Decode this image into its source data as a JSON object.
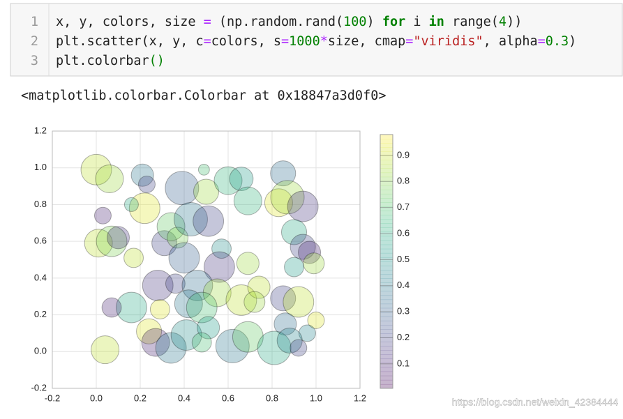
{
  "code": {
    "line_numbers": [
      "1",
      "2",
      "3"
    ],
    "lines": [
      [
        "x, y, colors, size ",
        "=",
        " (np.random.rand(",
        "100",
        ") ",
        "for",
        " i ",
        "in",
        " range(",
        "4",
        "))"
      ],
      [
        "plt.scatter(x, y, c",
        "=",
        "colors, s",
        "=",
        "1000",
        "*",
        "size, cmap",
        "=",
        "\"viridis\"",
        ", alpha",
        "=",
        "0.3",
        ")"
      ],
      [
        "plt.colorbar",
        "()"
      ]
    ]
  },
  "output": "<matplotlib.colorbar.Colorbar at 0x18847a3d0f0>",
  "chart_data": {
    "type": "scatter",
    "cmap": "viridis",
    "alpha": 0.3,
    "grid": true,
    "x": [
      0.0,
      0.06,
      0.21,
      0.23,
      0.39,
      0.49,
      0.22,
      0.03,
      0.16,
      0.5,
      0.6,
      0.66,
      0.69,
      0.85,
      0.83,
      0.87,
      0.94,
      0.9,
      0.94,
      0.97,
      0.99,
      0.9,
      0.01,
      0.07,
      0.1,
      0.17,
      0.31,
      0.34,
      0.37,
      0.43,
      0.51,
      0.4,
      0.57,
      0.56,
      0.69,
      0.28,
      0.36,
      0.46,
      0.55,
      0.66,
      0.74,
      0.72,
      0.85,
      0.92,
      0.16,
      0.07,
      0.29,
      0.42,
      0.48,
      1.0,
      0.86,
      0.96,
      0.24,
      0.27,
      0.34,
      0.41,
      0.51,
      0.62,
      0.69,
      0.81,
      0.88,
      0.92,
      0.04,
      0.48
    ],
    "values": [
      0.99,
      0.94,
      0.96,
      0.91,
      0.89,
      0.99,
      0.78,
      0.74,
      0.8,
      0.87,
      0.93,
      0.94,
      0.82,
      0.97,
      0.81,
      0.84,
      0.79,
      0.65,
      0.57,
      0.54,
      0.48,
      0.46,
      0.59,
      0.6,
      0.62,
      0.51,
      0.59,
      0.68,
      0.62,
      0.72,
      0.71,
      0.51,
      0.56,
      0.46,
      0.48,
      0.36,
      0.37,
      0.36,
      0.32,
      0.28,
      0.35,
      0.27,
      0.29,
      0.27,
      0.24,
      0.24,
      0.23,
      0.26,
      0.24,
      0.17,
      0.15,
      0.1,
      0.11,
      0.05,
      0.02,
      0.09,
      0.13,
      0.03,
      0.08,
      0.02,
      0.06,
      0.02,
      0.01,
      0.05
    ],
    "colors": [
      0.9,
      0.85,
      0.4,
      0.2,
      0.3,
      0.7,
      0.95,
      0.1,
      0.6,
      0.85,
      0.65,
      0.55,
      0.65,
      0.35,
      0.95,
      0.85,
      0.15,
      0.6,
      0.2,
      0.1,
      0.85,
      0.55,
      0.9,
      0.8,
      0.15,
      0.9,
      0.2,
      0.75,
      0.8,
      0.4,
      0.2,
      0.3,
      0.5,
      0.15,
      0.85,
      0.15,
      0.2,
      0.35,
      0.85,
      0.9,
      0.9,
      0.85,
      0.2,
      0.9,
      0.6,
      0.1,
      0.95,
      0.4,
      0.7,
      0.95,
      0.35,
      0.45,
      0.95,
      0.1,
      0.4,
      0.5,
      0.55,
      0.4,
      0.75,
      0.6,
      0.45,
      0.2,
      0.9,
      0.7
    ],
    "sizes": [
      0.77,
      0.64,
      0.41,
      0.23,
      0.92,
      0.1,
      0.77,
      0.23,
      0.16,
      0.52,
      0.64,
      0.46,
      0.64,
      0.52,
      0.64,
      0.92,
      0.77,
      0.52,
      0.52,
      0.41,
      0.36,
      0.31,
      0.64,
      0.77,
      0.41,
      0.31,
      0.52,
      0.64,
      0.36,
      0.92,
      0.77,
      0.77,
      0.31,
      0.77,
      0.41,
      0.77,
      0.31,
      0.77,
      0.64,
      0.77,
      0.41,
      0.36,
      0.52,
      0.77,
      0.77,
      0.31,
      0.31,
      0.64,
      0.77,
      0.23,
      0.41,
      0.23,
      0.52,
      0.64,
      0.77,
      0.77,
      0.41,
      0.92,
      0.77,
      0.92,
      0.52,
      0.23,
      0.64,
      0.31
    ],
    "xlim": [
      -0.2,
      1.2
    ],
    "ylim": [
      -0.2,
      1.2
    ],
    "xticks": [
      -0.2,
      {
        "value": 0,
        "label": "0.0"
      },
      0.2,
      0.4,
      0.6,
      0.8,
      {
        "value": 1,
        "label": "1.0"
      },
      1.2
    ],
    "yticks": [
      -0.2,
      {
        "value": 0,
        "label": "0.0"
      },
      0.2,
      0.4,
      0.6,
      0.8,
      {
        "value": 1,
        "label": "1.0"
      },
      1.2
    ],
    "clim": [
      0.006,
      0.98
    ],
    "cticks": [
      0.1,
      0.2,
      0.3,
      0.4,
      0.5,
      0.6,
      0.7,
      0.8,
      0.9
    ]
  },
  "watermark": "https://blog.csdn.net/weixin_42384444"
}
